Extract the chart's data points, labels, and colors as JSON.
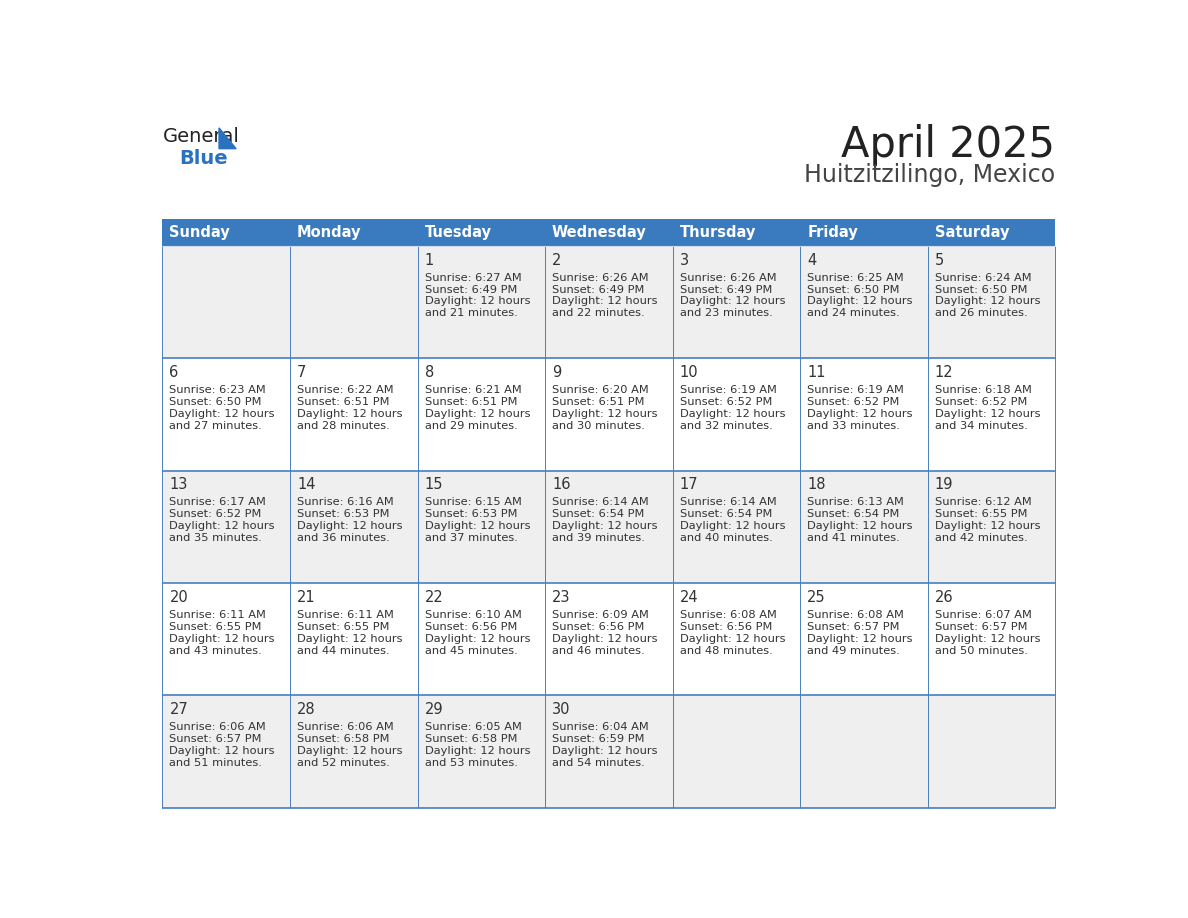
{
  "title": "April 2025",
  "subtitle": "Huitzitzilingo, Mexico",
  "header_bg_color": "#3a7abf",
  "header_text_color": "#ffffff",
  "days_of_week": [
    "Sunday",
    "Monday",
    "Tuesday",
    "Wednesday",
    "Thursday",
    "Friday",
    "Saturday"
  ],
  "row_bg_colors": [
    "#efefef",
    "#ffffff",
    "#efefef",
    "#ffffff",
    "#efefef"
  ],
  "cell_text_color": "#333333",
  "grid_line_color": "#4a7ebd",
  "title_color": "#222222",
  "subtitle_color": "#444444",
  "logo_general_color": "#222222",
  "logo_blue_color": "#2a72c0",
  "calendar_data": [
    [
      null,
      null,
      {
        "day": 1,
        "sunrise": "6:27 AM",
        "sunset": "6:49 PM",
        "dl1": "Daylight: 12 hours",
        "dl2": "and 21 minutes."
      },
      {
        "day": 2,
        "sunrise": "6:26 AM",
        "sunset": "6:49 PM",
        "dl1": "Daylight: 12 hours",
        "dl2": "and 22 minutes."
      },
      {
        "day": 3,
        "sunrise": "6:26 AM",
        "sunset": "6:49 PM",
        "dl1": "Daylight: 12 hours",
        "dl2": "and 23 minutes."
      },
      {
        "day": 4,
        "sunrise": "6:25 AM",
        "sunset": "6:50 PM",
        "dl1": "Daylight: 12 hours",
        "dl2": "and 24 minutes."
      },
      {
        "day": 5,
        "sunrise": "6:24 AM",
        "sunset": "6:50 PM",
        "dl1": "Daylight: 12 hours",
        "dl2": "and 26 minutes."
      }
    ],
    [
      {
        "day": 6,
        "sunrise": "6:23 AM",
        "sunset": "6:50 PM",
        "dl1": "Daylight: 12 hours",
        "dl2": "and 27 minutes."
      },
      {
        "day": 7,
        "sunrise": "6:22 AM",
        "sunset": "6:51 PM",
        "dl1": "Daylight: 12 hours",
        "dl2": "and 28 minutes."
      },
      {
        "day": 8,
        "sunrise": "6:21 AM",
        "sunset": "6:51 PM",
        "dl1": "Daylight: 12 hours",
        "dl2": "and 29 minutes."
      },
      {
        "day": 9,
        "sunrise": "6:20 AM",
        "sunset": "6:51 PM",
        "dl1": "Daylight: 12 hours",
        "dl2": "and 30 minutes."
      },
      {
        "day": 10,
        "sunrise": "6:19 AM",
        "sunset": "6:52 PM",
        "dl1": "Daylight: 12 hours",
        "dl2": "and 32 minutes."
      },
      {
        "day": 11,
        "sunrise": "6:19 AM",
        "sunset": "6:52 PM",
        "dl1": "Daylight: 12 hours",
        "dl2": "and 33 minutes."
      },
      {
        "day": 12,
        "sunrise": "6:18 AM",
        "sunset": "6:52 PM",
        "dl1": "Daylight: 12 hours",
        "dl2": "and 34 minutes."
      }
    ],
    [
      {
        "day": 13,
        "sunrise": "6:17 AM",
        "sunset": "6:52 PM",
        "dl1": "Daylight: 12 hours",
        "dl2": "and 35 minutes."
      },
      {
        "day": 14,
        "sunrise": "6:16 AM",
        "sunset": "6:53 PM",
        "dl1": "Daylight: 12 hours",
        "dl2": "and 36 minutes."
      },
      {
        "day": 15,
        "sunrise": "6:15 AM",
        "sunset": "6:53 PM",
        "dl1": "Daylight: 12 hours",
        "dl2": "and 37 minutes."
      },
      {
        "day": 16,
        "sunrise": "6:14 AM",
        "sunset": "6:54 PM",
        "dl1": "Daylight: 12 hours",
        "dl2": "and 39 minutes."
      },
      {
        "day": 17,
        "sunrise": "6:14 AM",
        "sunset": "6:54 PM",
        "dl1": "Daylight: 12 hours",
        "dl2": "and 40 minutes."
      },
      {
        "day": 18,
        "sunrise": "6:13 AM",
        "sunset": "6:54 PM",
        "dl1": "Daylight: 12 hours",
        "dl2": "and 41 minutes."
      },
      {
        "day": 19,
        "sunrise": "6:12 AM",
        "sunset": "6:55 PM",
        "dl1": "Daylight: 12 hours",
        "dl2": "and 42 minutes."
      }
    ],
    [
      {
        "day": 20,
        "sunrise": "6:11 AM",
        "sunset": "6:55 PM",
        "dl1": "Daylight: 12 hours",
        "dl2": "and 43 minutes."
      },
      {
        "day": 21,
        "sunrise": "6:11 AM",
        "sunset": "6:55 PM",
        "dl1": "Daylight: 12 hours",
        "dl2": "and 44 minutes."
      },
      {
        "day": 22,
        "sunrise": "6:10 AM",
        "sunset": "6:56 PM",
        "dl1": "Daylight: 12 hours",
        "dl2": "and 45 minutes."
      },
      {
        "day": 23,
        "sunrise": "6:09 AM",
        "sunset": "6:56 PM",
        "dl1": "Daylight: 12 hours",
        "dl2": "and 46 minutes."
      },
      {
        "day": 24,
        "sunrise": "6:08 AM",
        "sunset": "6:56 PM",
        "dl1": "Daylight: 12 hours",
        "dl2": "and 48 minutes."
      },
      {
        "day": 25,
        "sunrise": "6:08 AM",
        "sunset": "6:57 PM",
        "dl1": "Daylight: 12 hours",
        "dl2": "and 49 minutes."
      },
      {
        "day": 26,
        "sunrise": "6:07 AM",
        "sunset": "6:57 PM",
        "dl1": "Daylight: 12 hours",
        "dl2": "and 50 minutes."
      }
    ],
    [
      {
        "day": 27,
        "sunrise": "6:06 AM",
        "sunset": "6:57 PM",
        "dl1": "Daylight: 12 hours",
        "dl2": "and 51 minutes."
      },
      {
        "day": 28,
        "sunrise": "6:06 AM",
        "sunset": "6:58 PM",
        "dl1": "Daylight: 12 hours",
        "dl2": "and 52 minutes."
      },
      {
        "day": 29,
        "sunrise": "6:05 AM",
        "sunset": "6:58 PM",
        "dl1": "Daylight: 12 hours",
        "dl2": "and 53 minutes."
      },
      {
        "day": 30,
        "sunrise": "6:04 AM",
        "sunset": "6:59 PM",
        "dl1": "Daylight: 12 hours",
        "dl2": "and 54 minutes."
      },
      null,
      null,
      null
    ]
  ]
}
